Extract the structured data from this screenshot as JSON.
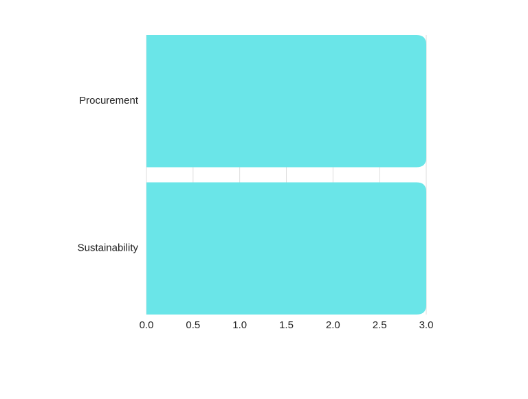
{
  "chart_data": {
    "type": "bar",
    "orientation": "horizontal",
    "categories": [
      "Procurement",
      "Sustainability"
    ],
    "series": [
      {
        "values": [
          3.0,
          3.0
        ]
      }
    ],
    "xlim": [
      0.0,
      3.0
    ],
    "xticks": [
      0.0,
      0.5,
      1.0,
      1.5,
      2.0,
      2.5,
      3.0
    ],
    "xtick_labels": [
      "0.0",
      "0.5",
      "1.0",
      "1.5",
      "2.0",
      "2.5",
      "3.0"
    ],
    "grid": "vertical",
    "legend": "none"
  },
  "colors": {
    "bar": "#6ae5e8",
    "grid": "#dddddd",
    "text": "#222222"
  }
}
